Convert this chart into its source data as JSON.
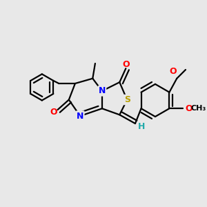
{
  "bg": "#e8e8e8",
  "bond_color": "#000000",
  "lw": 1.6,
  "N_color": "#0000ff",
  "O_color": "#ff0000",
  "S_color": "#b8a000",
  "H_color": "#22aaaa",
  "C_color": "#000000",
  "xlim": [
    -1.55,
    1.45
  ],
  "ylim": [
    -0.95,
    1.15
  ],
  "figsize": [
    3.0,
    3.0
  ],
  "dpi": 100
}
